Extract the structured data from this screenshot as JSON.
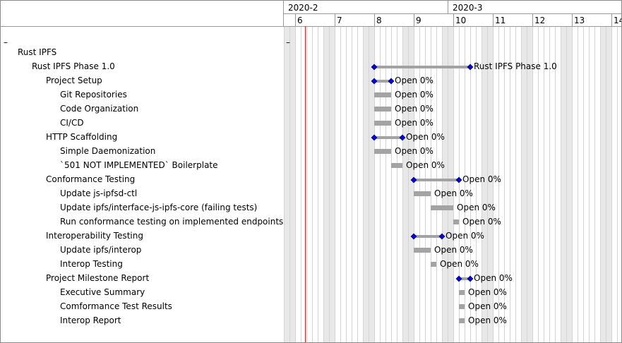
{
  "collapse_marks": [
    "–",
    "–"
  ],
  "chart_data": {
    "type": "gantt",
    "months": [
      {
        "label": "2020-2",
        "start_week": 6
      },
      {
        "label": "2020-3",
        "start_week": 10
      }
    ],
    "weeks": [
      "6",
      "7",
      "8",
      "9",
      "10",
      "11",
      "12",
      "13",
      "14"
    ],
    "today": "2020-02-05",
    "tasks": [
      {
        "name": "Rust IPFS",
        "level": 0,
        "type": "group"
      },
      {
        "name": "Rust IPFS Phase 1.0",
        "level": 1,
        "type": "summary",
        "start": "2020-02-17",
        "end": "2020-03-04",
        "label": "Rust IPFS Phase 1.0"
      },
      {
        "name": "Project Setup",
        "level": 2,
        "type": "summary",
        "start": "2020-02-17",
        "end": "2020-02-19",
        "label": "Open 0%"
      },
      {
        "name": "Git Repositories",
        "level": 3,
        "type": "task",
        "start": "2020-02-17",
        "end": "2020-02-19",
        "label": "Open 0%"
      },
      {
        "name": "Code Organization",
        "level": 3,
        "type": "task",
        "start": "2020-02-17",
        "end": "2020-02-19",
        "label": "Open 0%"
      },
      {
        "name": "CI/CD",
        "level": 3,
        "type": "task",
        "start": "2020-02-17",
        "end": "2020-02-19",
        "label": "Open 0%"
      },
      {
        "name": "HTTP Scaffolding",
        "level": 2,
        "type": "summary",
        "start": "2020-02-17",
        "end": "2020-02-21",
        "label": "Open 0%"
      },
      {
        "name": "Simple Daemonization",
        "level": 3,
        "type": "task",
        "start": "2020-02-17",
        "end": "2020-02-19",
        "label": "Open 0%"
      },
      {
        "name": "`501 NOT IMPLEMENTED` Boilerplate",
        "level": 3,
        "type": "task",
        "start": "2020-02-20",
        "end": "2020-02-21",
        "label": "Open 0%"
      },
      {
        "name": "Conformance Testing",
        "level": 2,
        "type": "summary",
        "start": "2020-02-24",
        "end": "2020-03-02",
        "label": "Open 0%"
      },
      {
        "name": "Update js-ipfsd-ctl",
        "level": 3,
        "type": "task",
        "start": "2020-02-24",
        "end": "2020-02-26",
        "label": "Open 0%"
      },
      {
        "name": "Update ipfs/interface-js-ipfs-core (failing tests)",
        "level": 3,
        "type": "task",
        "start": "2020-02-27",
        "end": "2020-03-01",
        "label": "Open 0%"
      },
      {
        "name": "Run conformance testing on implemented endpoints",
        "level": 3,
        "type": "task",
        "start": "2020-03-02",
        "end": "2020-03-02",
        "label": "Open 0%"
      },
      {
        "name": "Interoperability Testing",
        "level": 2,
        "type": "summary",
        "start": "2020-02-24",
        "end": "2020-02-28",
        "label": "Open 0%"
      },
      {
        "name": "Update ipfs/interop",
        "level": 3,
        "type": "task",
        "start": "2020-02-24",
        "end": "2020-02-26",
        "label": "Open 0%"
      },
      {
        "name": "Interop Testing",
        "level": 3,
        "type": "task",
        "start": "2020-02-27",
        "end": "2020-02-27",
        "label": "Open 0%"
      },
      {
        "name": "Project Milestone Report",
        "level": 2,
        "type": "summary",
        "start": "2020-03-03",
        "end": "2020-03-04",
        "label": "Open 0%"
      },
      {
        "name": "Executive Summary",
        "level": 3,
        "type": "task",
        "start": "2020-03-03",
        "end": "2020-03-03",
        "label": "Open 0%"
      },
      {
        "name": "Comformance Test Results",
        "level": 3,
        "type": "task",
        "start": "2020-03-03",
        "end": "2020-03-03",
        "label": "Open 0%"
      },
      {
        "name": "Interop Report",
        "level": 3,
        "type": "task",
        "start": "2020-03-03",
        "end": "2020-03-03",
        "label": "Open 0%"
      }
    ]
  }
}
